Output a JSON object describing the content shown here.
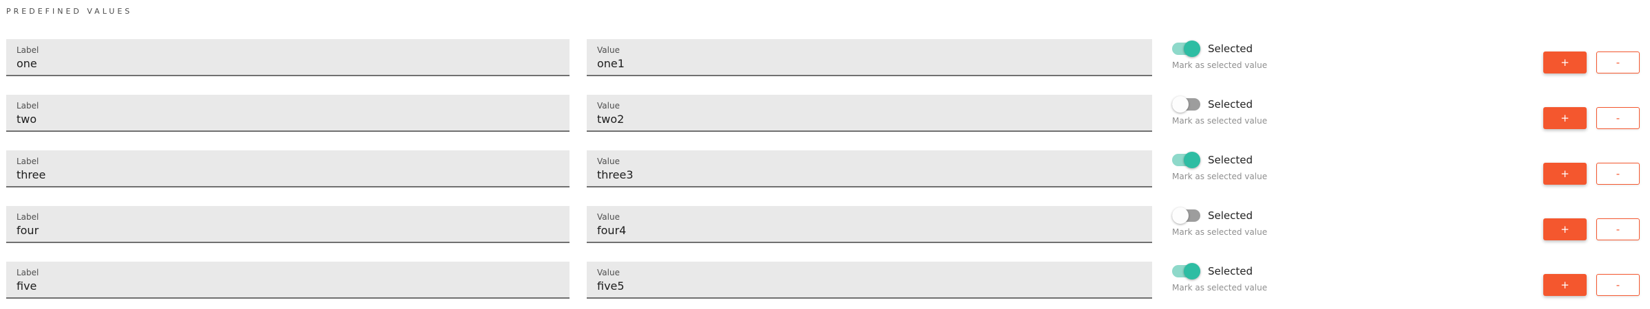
{
  "section": {
    "title": "PREDEFINED VALUES"
  },
  "field_captions": {
    "label": "Label",
    "value": "Value"
  },
  "toggle": {
    "label": "Selected",
    "hint": "Mark as selected value"
  },
  "buttons": {
    "add": "+",
    "remove": "-"
  },
  "colors": {
    "accent_orange": "#f4572e",
    "toggle_on_knob": "#2ebda3",
    "toggle_on_track": "#8ed9ca",
    "toggle_off_knob": "#fdfdfd",
    "toggle_off_track": "#9d9d9d",
    "field_background": "#e9e9e9",
    "field_underline": "#707070"
  },
  "rows": [
    {
      "label": "one",
      "value": "one1",
      "selected": true
    },
    {
      "label": "two",
      "value": "two2",
      "selected": false
    },
    {
      "label": "three",
      "value": "three3",
      "selected": true
    },
    {
      "label": "four",
      "value": "four4",
      "selected": false
    },
    {
      "label": "five",
      "value": "five5",
      "selected": true
    }
  ]
}
